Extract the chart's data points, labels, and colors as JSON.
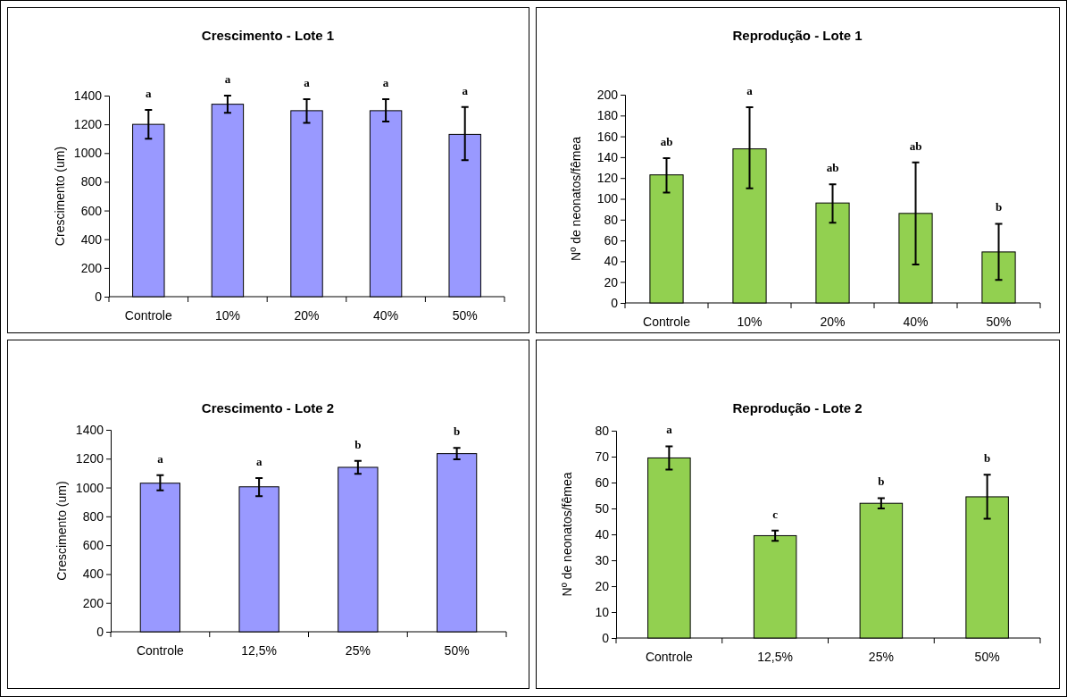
{
  "chart_data": [
    {
      "type": "bar",
      "title": "Crescimento - Lote 1",
      "ylabel": "Crescimento (um)",
      "categories": [
        "Controle",
        "10%",
        "20%",
        "40%",
        "50%"
      ],
      "values": [
        1200,
        1340,
        1295,
        1295,
        1130
      ],
      "errors": [
        [
          1100,
          1300
        ],
        [
          1280,
          1400
        ],
        [
          1210,
          1375
        ],
        [
          1220,
          1375
        ],
        [
          950,
          1320
        ]
      ],
      "color": "#9999ff",
      "ylim": [
        0,
        1400
      ],
      "yticks": [
        0,
        200,
        400,
        600,
        800,
        1000,
        1200,
        1400
      ],
      "grid": false,
      "annotations": [
        "a",
        "a",
        "a",
        "a",
        "a"
      ]
    },
    {
      "type": "bar",
      "title": "Reprodução - Lote 1",
      "ylabel": "Nº de neonatos/fêmea",
      "categories": [
        "Controle",
        "10%",
        "20%",
        "40%",
        "50%"
      ],
      "values": [
        123,
        148,
        96,
        86,
        49
      ],
      "errors": [
        [
          106,
          139
        ],
        [
          110,
          188
        ],
        [
          77,
          114
        ],
        [
          37,
          135
        ],
        [
          22,
          76
        ]
      ],
      "color": "#92d050",
      "ylim": [
        0,
        200
      ],
      "yticks": [
        0,
        20,
        40,
        60,
        80,
        100,
        120,
        140,
        160,
        180,
        200
      ],
      "grid": false,
      "annotations": [
        "ab",
        "a",
        "ab",
        "ab",
        "b"
      ]
    },
    {
      "type": "bar",
      "title": "Crescimento - Lote 2",
      "ylabel": "Crescimento (um)",
      "categories": [
        "Controle",
        "12,5%",
        "25%",
        "50%"
      ],
      "values": [
        1030,
        1005,
        1140,
        1235
      ],
      "errors": [
        [
          980,
          1085
        ],
        [
          940,
          1065
        ],
        [
          1095,
          1185
        ],
        [
          1195,
          1275
        ]
      ],
      "color": "#9999ff",
      "ylim": [
        0,
        1400
      ],
      "yticks": [
        0,
        200,
        400,
        600,
        800,
        1000,
        1200,
        1400
      ],
      "grid": false,
      "annotations": [
        "a",
        "a",
        "b",
        "b"
      ]
    },
    {
      "type": "bar",
      "title": "Reprodução - Lote 2",
      "ylabel": "Nº de neonatos/fêmea",
      "categories": [
        "Controle",
        "12,5%",
        "25%",
        "50%"
      ],
      "values": [
        69.5,
        39.5,
        52,
        54.5
      ],
      "errors": [
        [
          65,
          74
        ],
        [
          37.5,
          41.5
        ],
        [
          50,
          54
        ],
        [
          46,
          63
        ]
      ],
      "color": "#92d050",
      "ylim": [
        0,
        80
      ],
      "yticks": [
        0,
        10,
        20,
        30,
        40,
        50,
        60,
        70,
        80
      ],
      "grid": false,
      "annotations": [
        "a",
        "c",
        "b",
        "b"
      ]
    }
  ]
}
